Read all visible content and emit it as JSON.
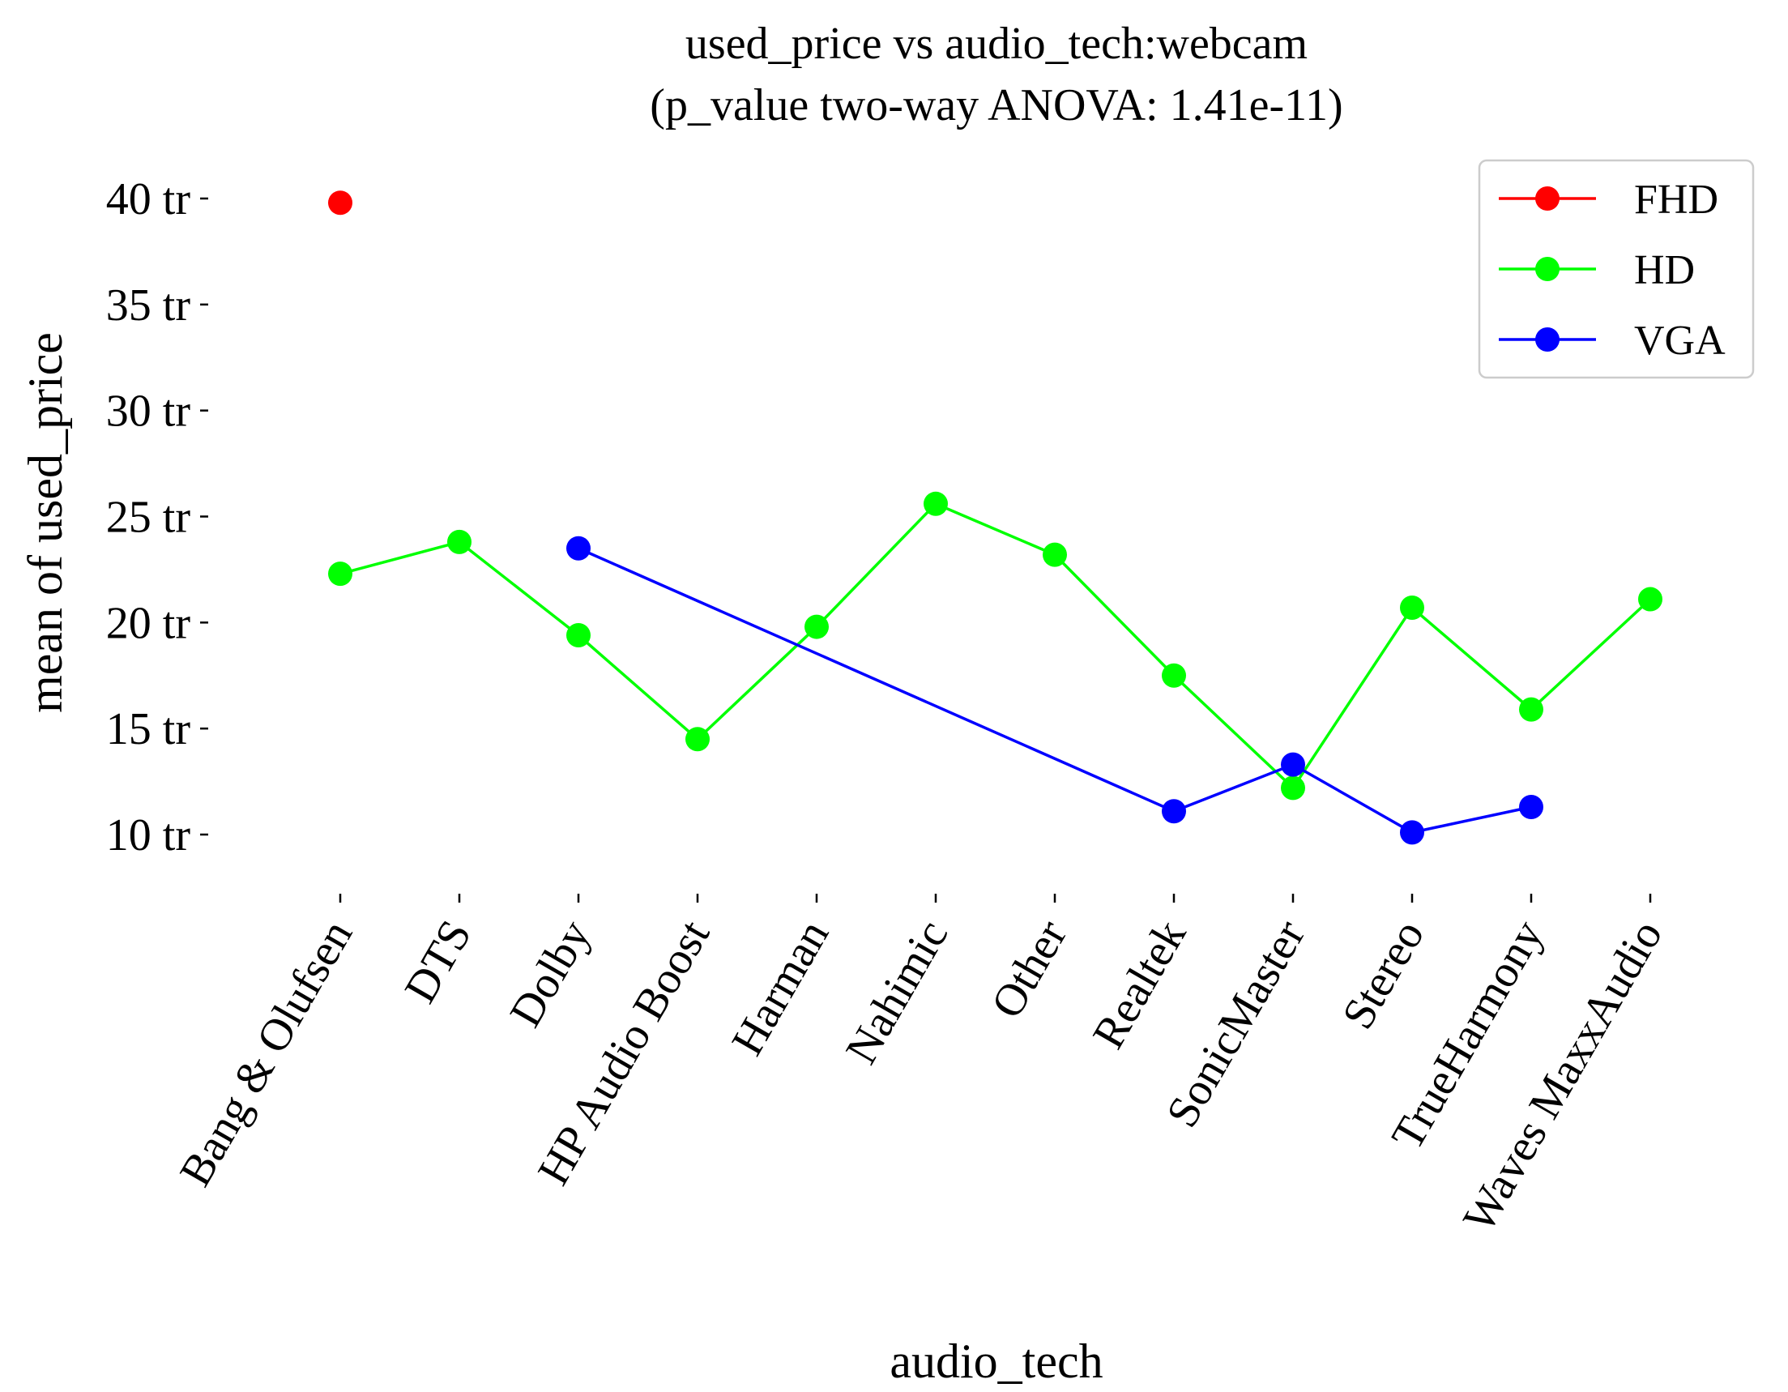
{
  "chart_data": {
    "type": "line",
    "title": "used_price vs audio_tech:webcam",
    "subtitle": "(p_value two-way ANOVA: 1.41e-11)",
    "xlabel": "audio_tech",
    "ylabel": "mean of used_price",
    "categories": [
      "Bang & Olufsen",
      "DTS",
      "Dolby",
      "HP Audio Boost",
      "Harman",
      "Nahimic",
      "Other",
      "Realtek",
      "SonicMaster",
      "Stereo",
      "TrueHarmony",
      "Waves MaxxAudio"
    ],
    "ylim": [
      7,
      42
    ],
    "yticks": [
      10,
      15,
      20,
      25,
      30,
      35,
      40
    ],
    "ytick_labels": [
      "10 tr",
      "15 tr",
      "20 tr",
      "25 tr",
      "30 tr",
      "35 tr",
      "40 tr"
    ],
    "grid": false,
    "legend_position": "top-right",
    "series": [
      {
        "name": "FHD",
        "color": "#ff0000",
        "values": [
          39.8,
          null,
          null,
          null,
          null,
          null,
          null,
          null,
          null,
          null,
          null,
          null
        ]
      },
      {
        "name": "HD",
        "color": "#00ff00",
        "values": [
          22.3,
          23.8,
          19.4,
          14.5,
          19.8,
          25.6,
          23.2,
          17.5,
          12.2,
          20.7,
          15.9,
          21.1
        ]
      },
      {
        "name": "VGA",
        "color": "#0000ff",
        "values": [
          null,
          null,
          23.5,
          null,
          null,
          null,
          null,
          11.1,
          13.3,
          10.1,
          11.3,
          null
        ]
      }
    ]
  }
}
